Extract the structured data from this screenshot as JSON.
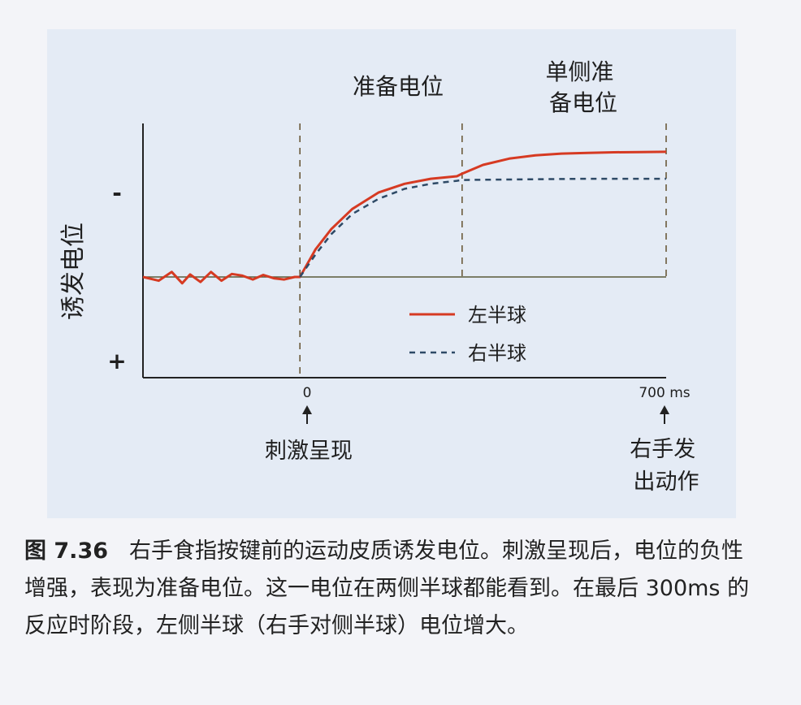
{
  "figure": {
    "number": "图 7.36",
    "caption": "右手食指按键前的运动皮质诱发电位。刺激呈现后，电位的负性增强，表现为准备电位。这一电位在两侧半球都能看到。在最后 300ms 的反应时阶段，左侧半球（右手对侧半球）电位增大。"
  },
  "chart_data": {
    "type": "line",
    "ylabel": "诱发电位",
    "y_ticks": [
      "-",
      "+"
    ],
    "x_ticks": [
      "0",
      "700 ms"
    ],
    "xlim": [
      -300,
      700
    ],
    "ylim": [
      -1.3,
      5
    ],
    "annotations": {
      "readiness_potential": "准备电位",
      "lateralized_readiness_potential": "单侧准备电位",
      "stimulus_onset": "刺激呈现",
      "response": "右手发出动作"
    },
    "reference_lines_x": [
      0,
      310,
      700
    ],
    "series": [
      {
        "name": "左半球",
        "color": "#d63a22",
        "style": "solid",
        "x": [
          -300,
          -270,
          -245,
          -225,
          -210,
          -190,
          -170,
          -150,
          -130,
          -110,
          -90,
          -70,
          -50,
          -30,
          -10,
          0,
          30,
          60,
          100,
          150,
          200,
          250,
          300,
          310,
          350,
          400,
          450,
          500,
          550,
          600,
          650,
          700
        ],
        "y": [
          0,
          -0.15,
          0.2,
          -0.25,
          0.1,
          -0.2,
          0.2,
          -0.15,
          0.12,
          0.05,
          -0.1,
          0.08,
          -0.05,
          -0.1,
          0,
          0,
          1.1,
          1.9,
          2.7,
          3.35,
          3.7,
          3.9,
          4.0,
          4.1,
          4.45,
          4.7,
          4.83,
          4.9,
          4.93,
          4.95,
          4.96,
          4.97
        ]
      },
      {
        "name": "右半球",
        "color": "#2e4a66",
        "style": "dashed",
        "x": [
          0,
          30,
          60,
          100,
          150,
          200,
          250,
          300,
          310,
          350,
          400,
          450,
          500,
          550,
          600,
          650,
          700
        ],
        "y": [
          0,
          0.9,
          1.7,
          2.5,
          3.1,
          3.5,
          3.7,
          3.82,
          3.85,
          3.86,
          3.87,
          3.88,
          3.89,
          3.9,
          3.9,
          3.9,
          3.9
        ]
      }
    ]
  }
}
